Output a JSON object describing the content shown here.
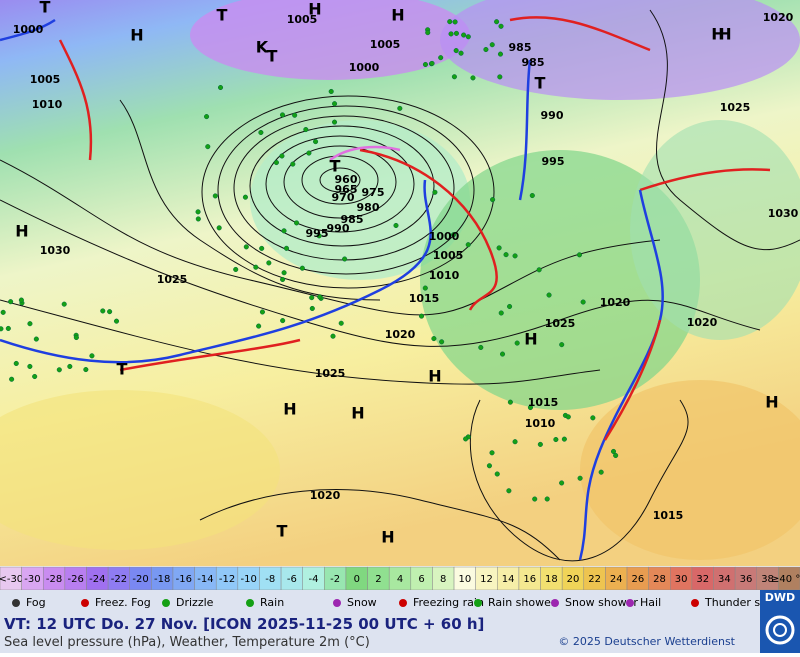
{
  "map": {
    "pressure_centers": [
      "T",
      "H",
      "T",
      "H",
      "H",
      "T",
      "H",
      "T",
      "H",
      "H",
      "H",
      "H",
      "H",
      "H",
      "H",
      "T",
      "T",
      "T",
      "K",
      "H"
    ],
    "isobar_labels": [
      "1000",
      "1005",
      "1010",
      "1005",
      "1005",
      "1000",
      "985",
      "985",
      "990",
      "995",
      "960",
      "965",
      "970",
      "975",
      "980",
      "985",
      "990",
      "995",
      "1000",
      "1005",
      "1010",
      "1015",
      "1020",
      "1030",
      "1025",
      "1025",
      "1020",
      "1025",
      "1020",
      "1030",
      "1025",
      "1020",
      "1015",
      "1010",
      "1015",
      "1020"
    ]
  },
  "scale": {
    "labels": [
      "<-30",
      "-30",
      "-28",
      "-26",
      "-24",
      "-22",
      "-20",
      "-18",
      "-16",
      "-14",
      "-12",
      "-10",
      "-8",
      "-6",
      "-4",
      "-2",
      "0",
      "2",
      "4",
      "6",
      "8",
      "10",
      "12",
      "14",
      "16",
      "18",
      "20",
      "22",
      "24",
      "26",
      "28",
      "30",
      "32",
      "34",
      "36",
      "38",
      "≥40 °C"
    ]
  },
  "legend": [
    "Fog",
    "Freez. Fog",
    "Drizzle",
    "Rain",
    "Snow",
    "Freezing rain",
    "Rain shower",
    "Snow shower",
    "Hail",
    "Thunder storm"
  ],
  "footer": {
    "valid_time": "VT: 12 UTC Do.  27 Nov. [ICON 2025-11-25  00 UTC + 60 h]",
    "description": "Sea level pressure (hPa), Weather, Temperature 2m (°C)",
    "copyright": "© 2025 Deutscher Wetterdienst",
    "logo": "DWD"
  }
}
